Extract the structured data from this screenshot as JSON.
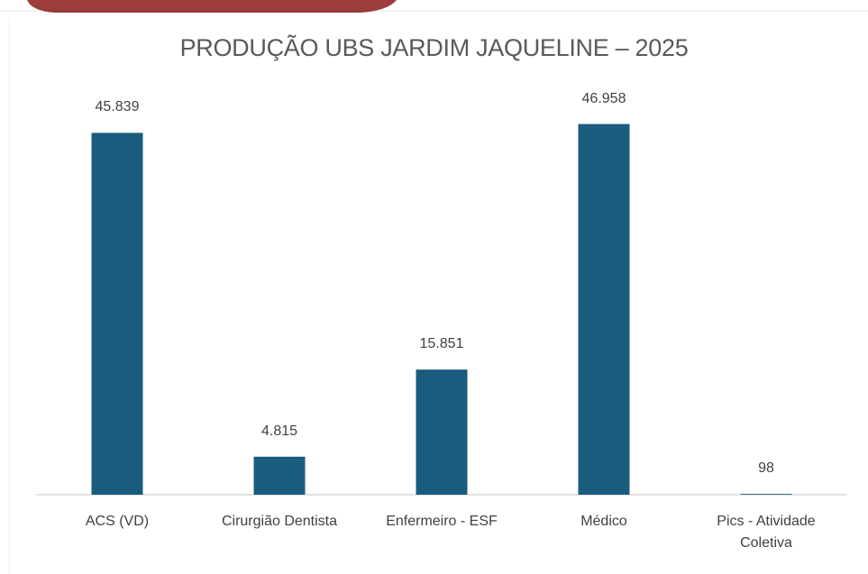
{
  "chart_data": {
    "type": "bar",
    "title": "PRODUÇÃO UBS JARDIM JAQUELINE – 2025",
    "categories": [
      "ACS (VD)",
      "Cirurgião Dentista",
      "Enfermeiro - ESF",
      "Médico",
      "Pics - Atividade Coletiva"
    ],
    "values": [
      45839,
      4815,
      15851,
      46958,
      98
    ],
    "value_labels": [
      "45.839",
      "4.815",
      "15.851",
      "46.958",
      "98"
    ],
    "color": "#1a5c7e",
    "ylim": [
      0,
      50000
    ]
  }
}
